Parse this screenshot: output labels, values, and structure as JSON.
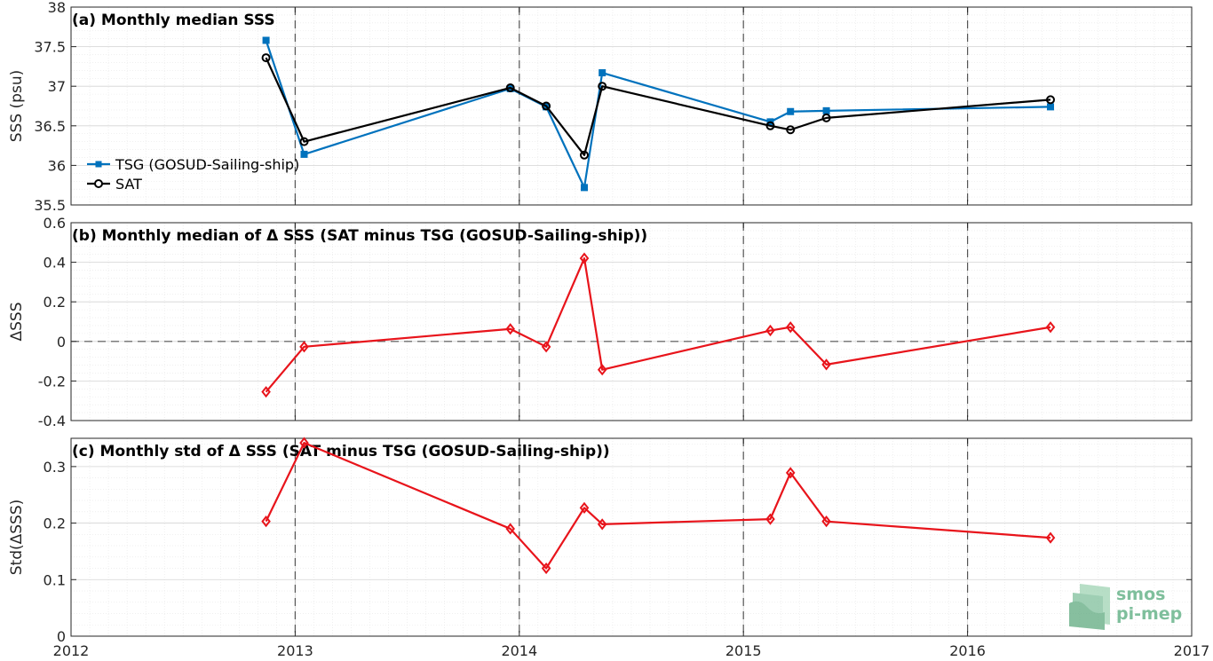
{
  "chart_data": [
    {
      "type": "line",
      "title": "(a) Monthly median SSS",
      "ylabel": "SSS (psu)",
      "xlim": [
        2012,
        2017
      ],
      "ylim": [
        35.5,
        38
      ],
      "yticks": [
        "35.5",
        "36",
        "36.5",
        "37",
        "37.5",
        "38"
      ],
      "grid": true,
      "minor_grid": true,
      "legend_position": "lower-left",
      "series": [
        {
          "name": "TSG (GOSUD-Sailing-ship)",
          "color": "#0072BD",
          "marker": "square",
          "x": [
            2012.87,
            2013.04,
            2013.96,
            2014.12,
            2014.29,
            2014.37,
            2015.12,
            2015.21,
            2015.37,
            2016.37
          ],
          "y": [
            37.58,
            36.14,
            36.97,
            36.74,
            35.72,
            37.17,
            36.55,
            36.68,
            36.69,
            36.74
          ]
        },
        {
          "name": "SAT",
          "color": "#000000",
          "marker": "circle",
          "x": [
            2012.87,
            2013.04,
            2013.96,
            2014.12,
            2014.29,
            2014.37,
            2015.12,
            2015.21,
            2015.37,
            2016.37
          ],
          "y": [
            37.36,
            36.3,
            36.98,
            36.75,
            36.13,
            37.0,
            36.5,
            36.45,
            36.6,
            36.83
          ]
        }
      ]
    },
    {
      "type": "line",
      "title": "(b) Monthly median of Δ SSS (SAT minus TSG (GOSUD-Sailing-ship))",
      "ylabel": "ΔSSS",
      "xlim": [
        2012,
        2017
      ],
      "ylim": [
        -0.4,
        0.6
      ],
      "yticks": [
        "-0.4",
        "-0.2",
        "0",
        "0.2",
        "0.4",
        "0.6"
      ],
      "zero_line": true,
      "grid": true,
      "minor_grid": true,
      "series": [
        {
          "color": "#E8141B",
          "marker": "diamond",
          "x": [
            2012.87,
            2013.04,
            2013.96,
            2014.12,
            2014.29,
            2014.37,
            2015.12,
            2015.21,
            2015.37,
            2016.37
          ],
          "y": [
            -0.255,
            -0.027,
            0.063,
            -0.027,
            0.42,
            -0.143,
            0.055,
            0.072,
            -0.117,
            0.072
          ]
        }
      ]
    },
    {
      "type": "line",
      "title": "(c) Monthly std of Δ SSS (SAT minus TSG (GOSUD-Sailing-ship))",
      "ylabel": "Std(ΔSSS)",
      "xlabel": "",
      "xlim": [
        2012,
        2017
      ],
      "ylim": [
        0,
        0.35
      ],
      "yticks": [
        "0",
        "0.1",
        "0.2",
        "0.3"
      ],
      "xticks": [
        "2012",
        "2013",
        "2014",
        "2015",
        "2016",
        "2017"
      ],
      "grid": true,
      "minor_grid": true,
      "series": [
        {
          "color": "#E8141B",
          "marker": "diamond",
          "x": [
            2012.87,
            2013.04,
            2013.96,
            2014.12,
            2014.29,
            2014.37,
            2015.12,
            2015.21,
            2015.37,
            2016.37
          ],
          "y": [
            0.203,
            0.342,
            0.19,
            0.12,
            0.227,
            0.198,
            0.207,
            0.289,
            0.203,
            0.174
          ]
        }
      ]
    }
  ],
  "year_marker_lines": [
    2013,
    2014,
    2015,
    2016
  ],
  "logo": {
    "line1": "smos",
    "line2": "pi-mep",
    "color": "#7fbf9c"
  }
}
